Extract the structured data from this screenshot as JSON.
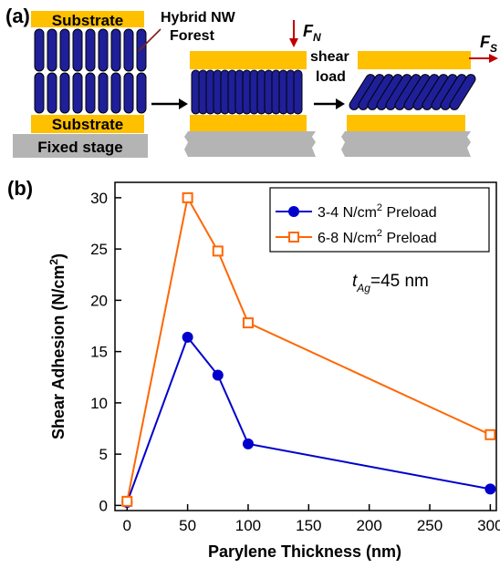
{
  "panel_a": {
    "label": "(a)",
    "substrate_top": "Substrate",
    "substrate_bottom": "Substrate",
    "fixed_stage": "Fixed stage",
    "forest_line1": "Hybrid NW",
    "forest_line2": "Forest",
    "normal_force": "F",
    "normal_force_sub": "N",
    "shear_line1": "shear",
    "shear_line2": "load",
    "shear_force": "F",
    "shear_force_sub": "S",
    "colors": {
      "substrate": "#ffc000",
      "nanowire": "#1f1f99",
      "nanowire_edge": "#000000",
      "stage": "#b4b4b4",
      "force_arrow": "#c00000"
    }
  },
  "panel_b": {
    "label": "(b)",
    "annotation_main": "t",
    "annotation_sub": "Ag",
    "annotation_rest": "=45 nm"
  },
  "chart_data": {
    "type": "line",
    "xlabel": "Parylene Thickness (nm)",
    "ylabel_main": "Shear Adhesion (N/cm",
    "ylabel_sup": "2",
    "ylabel_end": ")",
    "xlim": [
      -10,
      305
    ],
    "ylim": [
      -0.5,
      31.5
    ],
    "xticks": [
      0,
      50,
      100,
      150,
      200,
      250,
      300
    ],
    "yticks": [
      0,
      5,
      10,
      15,
      20,
      25,
      30
    ],
    "grid": false,
    "legend_position": "top-right",
    "series": [
      {
        "name": "3-4 N/cm",
        "name_sup": "2",
        "name_end": " Preload",
        "color": "#0000cc",
        "marker": "circle",
        "x": [
          0,
          50,
          75,
          100,
          300
        ],
        "y": [
          0.3,
          16.4,
          12.7,
          6.0,
          1.6
        ]
      },
      {
        "name": "6-8 N/cm",
        "name_sup": "2",
        "name_end": " Preload",
        "color": "#ff6600",
        "marker": "square",
        "x": [
          0,
          50,
          75,
          100,
          300
        ],
        "y": [
          0.4,
          30.0,
          24.8,
          17.8,
          6.9
        ]
      }
    ]
  }
}
